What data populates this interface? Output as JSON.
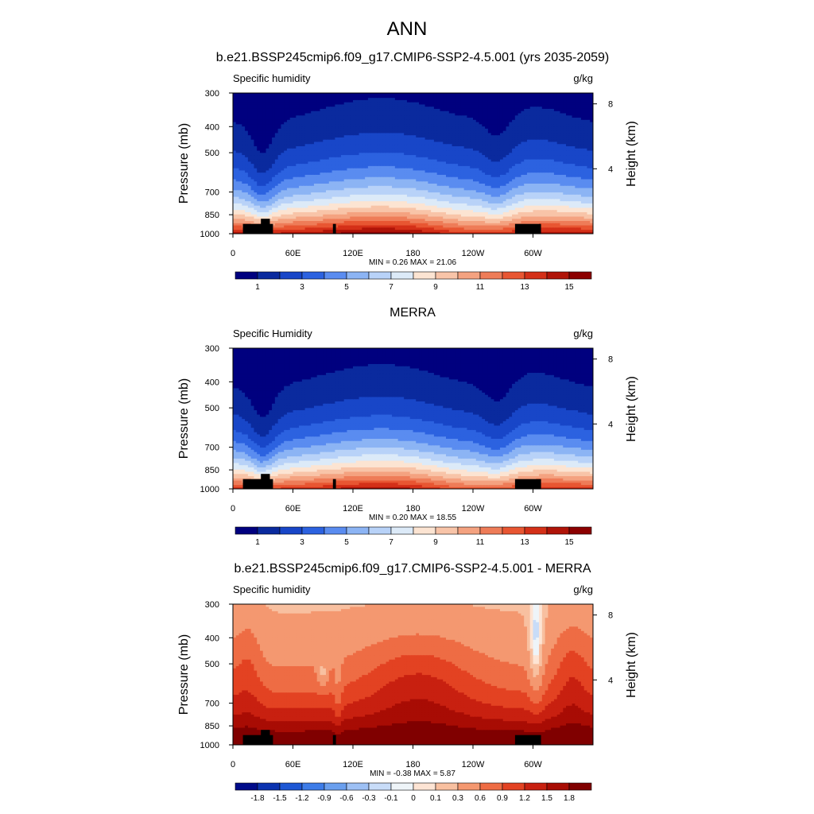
{
  "figure": {
    "title": "ANN"
  },
  "palette": {
    "abs": [
      "#00007f",
      "#0a2a9e",
      "#1846c8",
      "#2c62e0",
      "#5a8cf0",
      "#8cb4f4",
      "#b8d2f8",
      "#dceaf8",
      "#fce4d2",
      "#f8c4a8",
      "#f4a280",
      "#ee7c58",
      "#e85632",
      "#d43018",
      "#b01408",
      "#8c0000"
    ],
    "diff": [
      "#000b8a",
      "#0b33b0",
      "#1d57d4",
      "#3d7ce8",
      "#6a9fee",
      "#9dc0f4",
      "#c8dcf8",
      "#eef4f8",
      "#fde4d4",
      "#f8c0a0",
      "#f49870",
      "#ee6c44",
      "#e34222",
      "#c82010",
      "#a80c04",
      "#800000"
    ]
  },
  "chart_data": [
    {
      "type": "contour",
      "panel_title": "b.e21.BSSP245cmip6.f09_g17.CMIP6-SSP2-4.5.001 (yrs 2035-2059)",
      "left_label": "Specific humidity",
      "units": "g/kg",
      "ylabel": "Pressure (mb)",
      "y2label": "Height (km)",
      "yticks": [
        "300",
        "400",
        "500",
        "700",
        "850",
        "1000"
      ],
      "y2ticks": [
        "8",
        "4"
      ],
      "xticks": [
        "0",
        "60E",
        "120E",
        "180",
        "120W",
        "60W"
      ],
      "xlim": [
        0,
        360
      ],
      "ylim": [
        1000,
        300
      ],
      "minmax_text": "MIN =   0.26  MAX =  21.06",
      "min": 0.26,
      "max": 21.06,
      "levels": [
        1,
        2,
        3,
        4,
        5,
        6,
        7,
        8,
        9,
        10,
        11,
        12,
        13,
        14,
        15
      ],
      "colorbar_labels": [
        "1",
        "3",
        "5",
        "7",
        "9",
        "11",
        "13",
        "15"
      ]
    },
    {
      "type": "contour",
      "panel_title": "MERRA",
      "left_label": "Specific Humidity",
      "units": "g/kg",
      "ylabel": "Pressure (mb)",
      "y2label": "Height (km)",
      "yticks": [
        "300",
        "400",
        "500",
        "700",
        "850",
        "1000"
      ],
      "y2ticks": [
        "8",
        "4"
      ],
      "xticks": [
        "0",
        "60E",
        "120E",
        "180",
        "120W",
        "60W"
      ],
      "xlim": [
        0,
        360
      ],
      "ylim": [
        1000,
        300
      ],
      "minmax_text": "MIN =   0.20  MAX =  18.55",
      "min": 0.2,
      "max": 18.55,
      "levels": [
        1,
        2,
        3,
        4,
        5,
        6,
        7,
        8,
        9,
        10,
        11,
        12,
        13,
        14,
        15
      ],
      "colorbar_labels": [
        "1",
        "3",
        "5",
        "7",
        "9",
        "11",
        "13",
        "15"
      ]
    },
    {
      "type": "contour",
      "panel_title": "b.e21.BSSP245cmip6.f09_g17.CMIP6-SSP2-4.5.001 - MERRA",
      "left_label": "Specific humidity",
      "units": "g/kg",
      "ylabel": "Pressure (mb)",
      "y2label": "Height (km)",
      "yticks": [
        "300",
        "400",
        "500",
        "700",
        "850",
        "1000"
      ],
      "y2ticks": [
        "8",
        "4"
      ],
      "xticks": [
        "0",
        "60E",
        "120E",
        "180",
        "120W",
        "60W"
      ],
      "xlim": [
        0,
        360
      ],
      "ylim": [
        1000,
        300
      ],
      "minmax_text": "MIN =  -0.38  MAX =   5.87",
      "min": -0.38,
      "max": 5.87,
      "levels": [
        -1.8,
        -1.5,
        -1.2,
        -0.9,
        -0.6,
        -0.3,
        -0.1,
        0,
        0.1,
        0.3,
        0.6,
        0.9,
        1.2,
        1.5,
        1.8
      ],
      "colorbar_labels": [
        "-1.8",
        "-1.5",
        "-1.2",
        "-0.9",
        "-0.6",
        "-0.3",
        "-0.1",
        "0",
        "0.1",
        "0.3",
        "0.6",
        "0.9",
        "1.2",
        "1.5",
        "1.8"
      ]
    }
  ]
}
